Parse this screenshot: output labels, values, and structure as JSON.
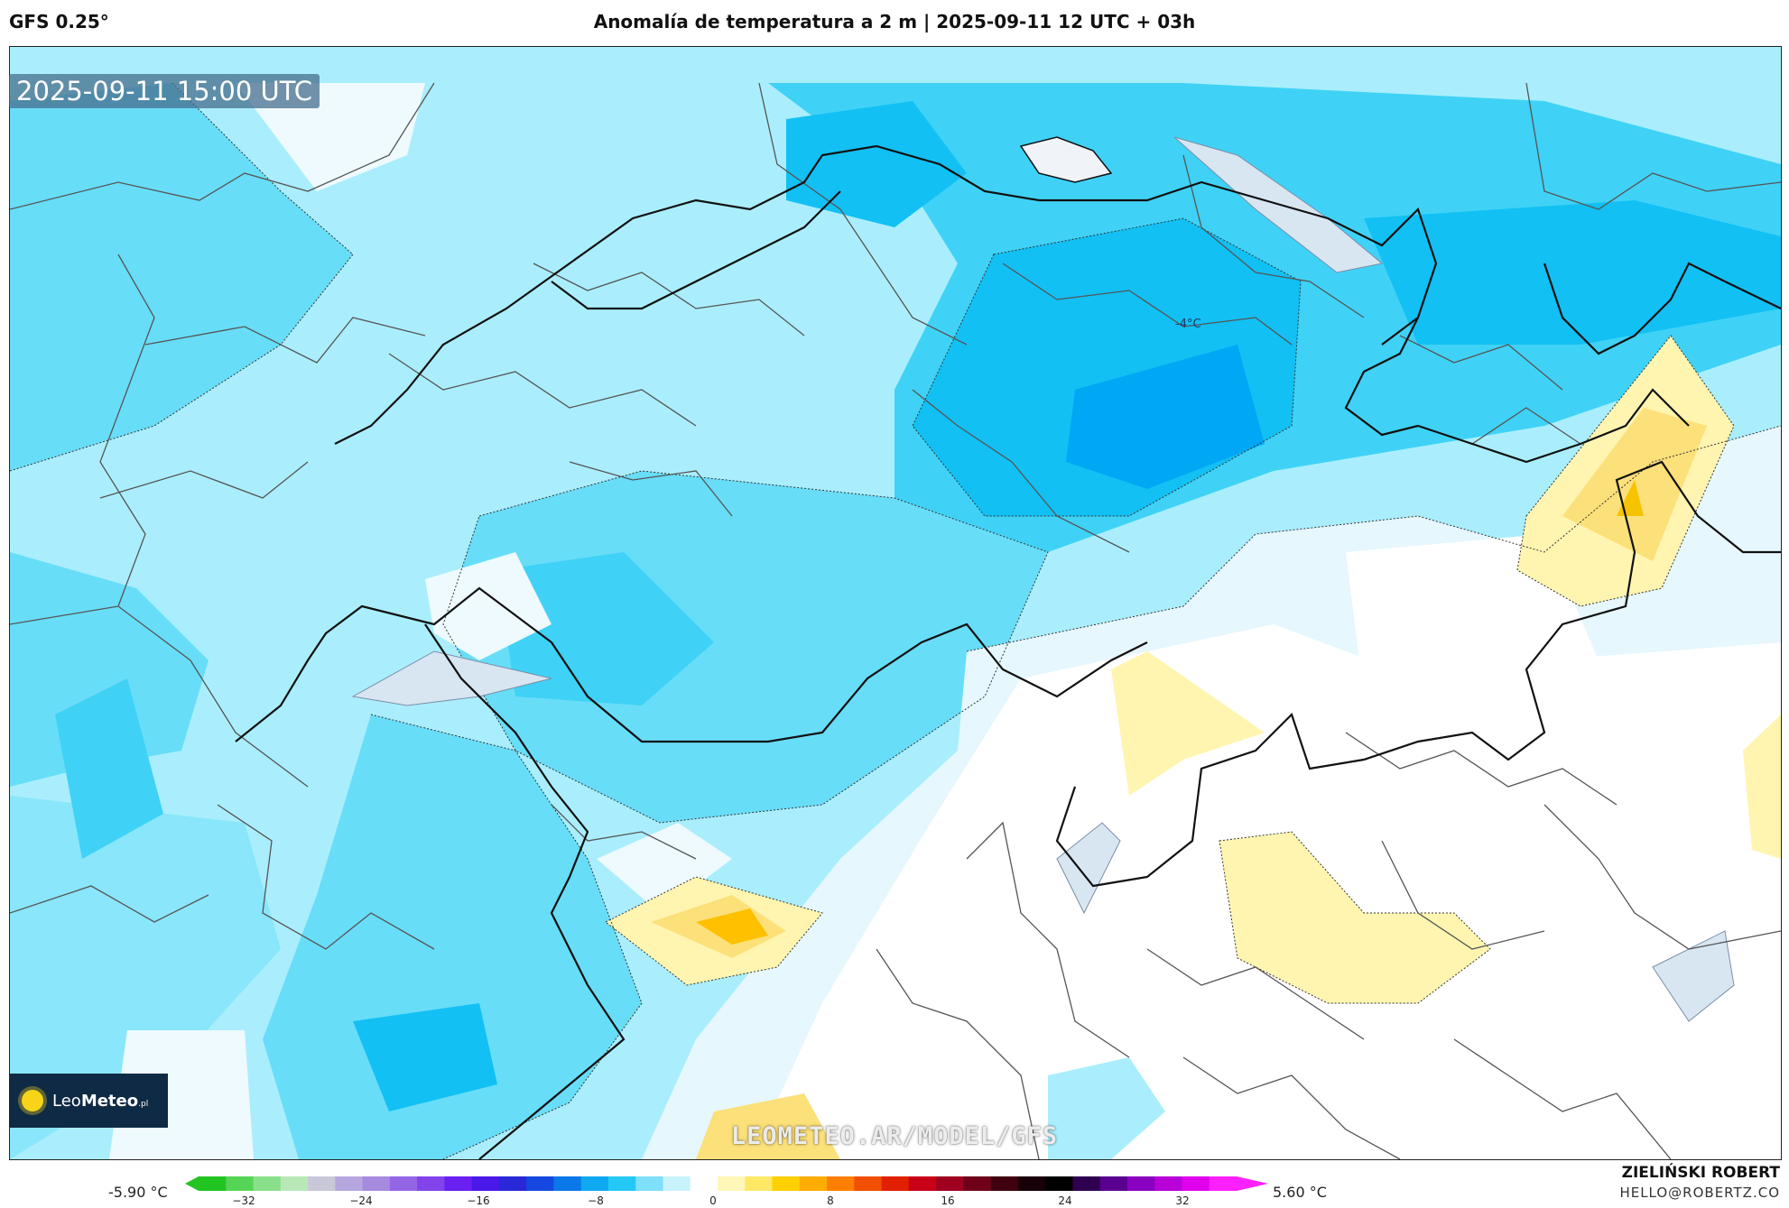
{
  "header": {
    "model": "GFS 0.25°",
    "title": "Anomalía de temperatura a 2 m | 2025-09-11 12 UTC + 03h"
  },
  "map": {
    "valid_time": "2025-09-11 15:00 UTC",
    "contour_label": "-4°C",
    "watermark": "LEOMETEO.AR/MODEL/GFS",
    "logo": {
      "name": "LeoMeteo",
      "name_a": "Leo",
      "name_b": "Meteo",
      "suffix": ".pl"
    }
  },
  "colorbar": {
    "min_label": "-5.90 °C",
    "max_label": "5.60 °C",
    "ticks": [
      "−32",
      "−24",
      "−16",
      "−8",
      "0",
      "8",
      "16",
      "24",
      "32"
    ],
    "colors": [
      "#22c422",
      "#56d456",
      "#8ae08a",
      "#b8e8b8",
      "#c8c8d8",
      "#b6a6e0",
      "#a58ae0",
      "#9466e6",
      "#8244ea",
      "#6a20f0",
      "#4a18e8",
      "#2828d8",
      "#1448e0",
      "#0a78e8",
      "#10a8f0",
      "#24c8f4",
      "#7ee0fa",
      "#c8f2fc",
      "#ffffff",
      "#fff7b8",
      "#ffe866",
      "#ffd000",
      "#ffac00",
      "#ff8000",
      "#f05000",
      "#e02000",
      "#c80018",
      "#a00020",
      "#70001a",
      "#400010",
      "#180008",
      "#000000",
      "#300050",
      "#5a0090",
      "#8a00c0",
      "#b800d8",
      "#e000ee",
      "#ff20ff"
    ]
  },
  "credits": {
    "author": "ZIELIŃSKI ROBERT",
    "email": "HELLO@ROBERTZ.CO"
  }
}
